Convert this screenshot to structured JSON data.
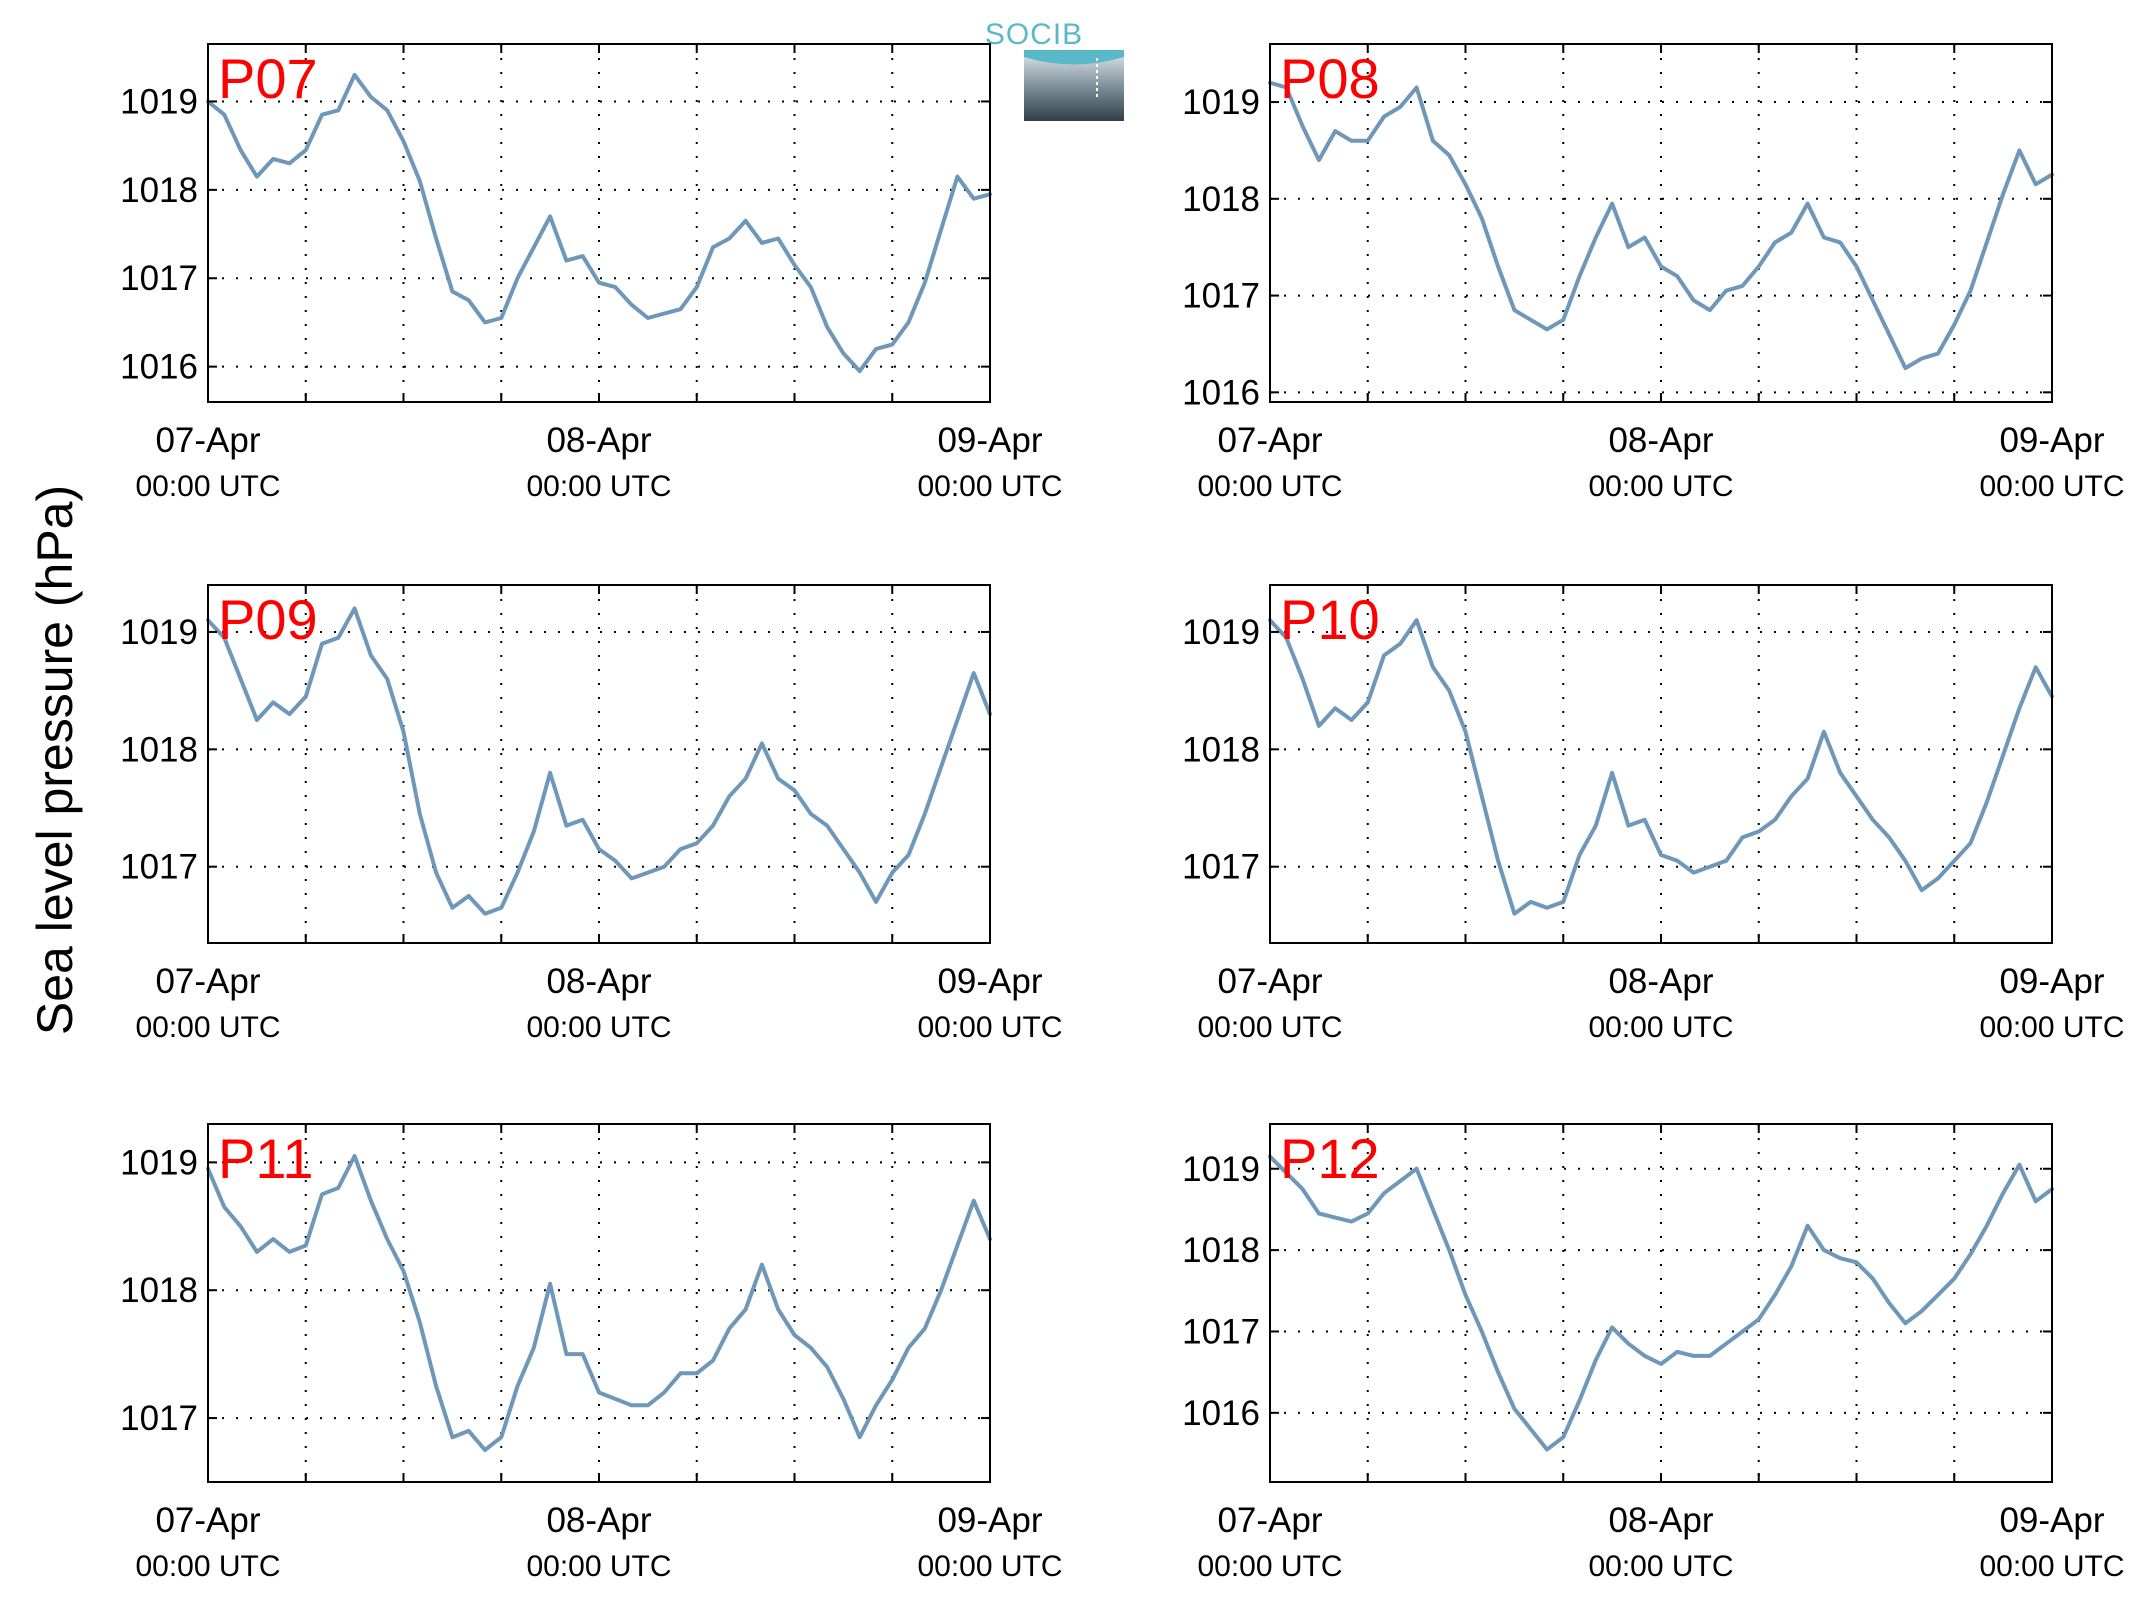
{
  "figure": {
    "ylabel": "Sea level pressure (hPa)",
    "logo_text": "SOCIB",
    "logo_icon": "socib-logo-icon"
  },
  "style": {
    "line_color": "#6f97b9",
    "title_color": "#ff0000",
    "axis_color": "#000000",
    "grid_color": "#000000"
  },
  "x_tick_labels": [
    {
      "date": "07-Apr",
      "time": "00:00 UTC"
    },
    {
      "date": "08-Apr",
      "time": "00:00 UTC"
    },
    {
      "date": "09-Apr",
      "time": "00:00 UTC"
    }
  ],
  "chart_data": [
    {
      "type": "line",
      "title": "P07",
      "xlabel": "",
      "ylabel": "Sea level pressure (hPa)",
      "x_unit": "hours since 07-Apr 00:00 UTC",
      "xlim": [
        0,
        48
      ],
      "ylim": [
        1015.6,
        1019.65
      ],
      "yticks": [
        1016,
        1017,
        1018,
        1019
      ],
      "grid": true,
      "x": [
        0,
        1,
        2,
        3,
        4,
        5,
        6,
        7,
        8,
        9,
        10,
        11,
        12,
        13,
        14,
        15,
        16,
        17,
        18,
        19,
        20,
        21,
        22,
        23,
        24,
        25,
        26,
        27,
        28,
        29,
        30,
        31,
        32,
        33,
        34,
        35,
        36,
        37,
        38,
        39,
        40,
        41,
        42,
        43,
        44,
        45,
        46,
        47,
        48
      ],
      "y": [
        1019.0,
        1018.85,
        1018.45,
        1018.15,
        1018.35,
        1018.3,
        1018.45,
        1018.85,
        1018.9,
        1019.3,
        1019.05,
        1018.9,
        1018.55,
        1018.1,
        1017.45,
        1016.85,
        1016.75,
        1016.5,
        1016.55,
        1017.0,
        1017.35,
        1017.7,
        1017.2,
        1017.25,
        1016.95,
        1016.9,
        1016.7,
        1016.55,
        1016.6,
        1016.65,
        1016.9,
        1017.35,
        1017.45,
        1017.65,
        1017.4,
        1017.45,
        1017.15,
        1016.9,
        1016.45,
        1016.15,
        1015.95,
        1016.2,
        1016.25,
        1016.5,
        1016.95,
        1017.55,
        1018.15,
        1017.9,
        1017.95
      ]
    },
    {
      "type": "line",
      "title": "P08",
      "xlabel": "",
      "ylabel": "Sea level pressure (hPa)",
      "x_unit": "hours since 07-Apr 00:00 UTC",
      "xlim": [
        0,
        48
      ],
      "ylim": [
        1015.9,
        1019.6
      ],
      "yticks": [
        1016,
        1017,
        1018,
        1019
      ],
      "grid": true,
      "x": [
        0,
        1,
        2,
        3,
        4,
        5,
        6,
        7,
        8,
        9,
        10,
        11,
        12,
        13,
        14,
        15,
        16,
        17,
        18,
        19,
        20,
        21,
        22,
        23,
        24,
        25,
        26,
        27,
        28,
        29,
        30,
        31,
        32,
        33,
        34,
        35,
        36,
        37,
        38,
        39,
        40,
        41,
        42,
        43,
        44,
        45,
        46,
        47,
        48
      ],
      "y": [
        1019.2,
        1019.15,
        1018.75,
        1018.4,
        1018.7,
        1018.6,
        1018.6,
        1018.85,
        1018.95,
        1019.15,
        1018.6,
        1018.45,
        1018.15,
        1017.8,
        1017.3,
        1016.85,
        1016.75,
        1016.65,
        1016.75,
        1017.2,
        1017.6,
        1017.95,
        1017.5,
        1017.6,
        1017.3,
        1017.2,
        1016.95,
        1016.85,
        1017.05,
        1017.1,
        1017.3,
        1017.55,
        1017.65,
        1017.95,
        1017.6,
        1017.55,
        1017.3,
        1016.95,
        1016.6,
        1016.25,
        1016.35,
        1016.4,
        1016.7,
        1017.05,
        1017.55,
        1018.05,
        1018.5,
        1018.15,
        1018.25
      ]
    },
    {
      "type": "line",
      "title": "P09",
      "xlabel": "",
      "ylabel": "Sea level pressure (hPa)",
      "x_unit": "hours since 07-Apr 00:00 UTC",
      "xlim": [
        0,
        48
      ],
      "ylim": [
        1016.35,
        1019.4
      ],
      "yticks": [
        1017,
        1018,
        1019
      ],
      "grid": true,
      "x": [
        0,
        1,
        2,
        3,
        4,
        5,
        6,
        7,
        8,
        9,
        10,
        11,
        12,
        13,
        14,
        15,
        16,
        17,
        18,
        19,
        20,
        21,
        22,
        23,
        24,
        25,
        26,
        27,
        28,
        29,
        30,
        31,
        32,
        33,
        34,
        35,
        36,
        37,
        38,
        39,
        40,
        41,
        42,
        43,
        44,
        45,
        46,
        47,
        48
      ],
      "y": [
        1019.1,
        1018.95,
        1018.6,
        1018.25,
        1018.4,
        1018.3,
        1018.45,
        1018.9,
        1018.95,
        1019.2,
        1018.8,
        1018.6,
        1018.15,
        1017.45,
        1016.95,
        1016.65,
        1016.75,
        1016.6,
        1016.65,
        1016.95,
        1017.3,
        1017.8,
        1017.35,
        1017.4,
        1017.15,
        1017.05,
        1016.9,
        1016.95,
        1017.0,
        1017.15,
        1017.2,
        1017.35,
        1017.6,
        1017.75,
        1018.05,
        1017.75,
        1017.65,
        1017.45,
        1017.35,
        1017.15,
        1016.95,
        1016.7,
        1016.95,
        1017.1,
        1017.45,
        1017.85,
        1018.25,
        1018.65,
        1018.3
      ]
    },
    {
      "type": "line",
      "title": "P10",
      "xlabel": "",
      "ylabel": "Sea level pressure (hPa)",
      "x_unit": "hours since 07-Apr 00:00 UTC",
      "xlim": [
        0,
        48
      ],
      "ylim": [
        1016.35,
        1019.4
      ],
      "yticks": [
        1017,
        1018,
        1019
      ],
      "grid": true,
      "x": [
        0,
        1,
        2,
        3,
        4,
        5,
        6,
        7,
        8,
        9,
        10,
        11,
        12,
        13,
        14,
        15,
        16,
        17,
        18,
        19,
        20,
        21,
        22,
        23,
        24,
        25,
        26,
        27,
        28,
        29,
        30,
        31,
        32,
        33,
        34,
        35,
        36,
        37,
        38,
        39,
        40,
        41,
        42,
        43,
        44,
        45,
        46,
        47,
        48
      ],
      "y": [
        1019.1,
        1018.95,
        1018.6,
        1018.2,
        1018.35,
        1018.25,
        1018.4,
        1018.8,
        1018.9,
        1019.1,
        1018.7,
        1018.5,
        1018.15,
        1017.6,
        1017.05,
        1016.6,
        1016.7,
        1016.65,
        1016.7,
        1017.1,
        1017.35,
        1017.8,
        1017.35,
        1017.4,
        1017.1,
        1017.05,
        1016.95,
        1017.0,
        1017.05,
        1017.25,
        1017.3,
        1017.4,
        1017.6,
        1017.75,
        1018.15,
        1017.8,
        1017.6,
        1017.4,
        1017.25,
        1017.05,
        1016.8,
        1016.9,
        1017.05,
        1017.2,
        1017.55,
        1017.95,
        1018.35,
        1018.7,
        1018.45
      ]
    },
    {
      "type": "line",
      "title": "P11",
      "xlabel": "",
      "ylabel": "Sea level pressure (hPa)",
      "x_unit": "hours since 07-Apr 00:00 UTC",
      "xlim": [
        0,
        48
      ],
      "ylim": [
        1016.5,
        1019.3
      ],
      "yticks": [
        1017,
        1018,
        1019
      ],
      "grid": true,
      "x": [
        0,
        1,
        2,
        3,
        4,
        5,
        6,
        7,
        8,
        9,
        10,
        11,
        12,
        13,
        14,
        15,
        16,
        17,
        18,
        19,
        20,
        21,
        22,
        23,
        24,
        25,
        26,
        27,
        28,
        29,
        30,
        31,
        32,
        33,
        34,
        35,
        36,
        37,
        38,
        39,
        40,
        41,
        42,
        43,
        44,
        45,
        46,
        47,
        48
      ],
      "y": [
        1018.95,
        1018.65,
        1018.5,
        1018.3,
        1018.4,
        1018.3,
        1018.35,
        1018.75,
        1018.8,
        1019.05,
        1018.7,
        1018.4,
        1018.15,
        1017.75,
        1017.25,
        1016.85,
        1016.9,
        1016.75,
        1016.85,
        1017.25,
        1017.55,
        1018.05,
        1017.5,
        1017.5,
        1017.2,
        1017.15,
        1017.1,
        1017.1,
        1017.2,
        1017.35,
        1017.35,
        1017.45,
        1017.7,
        1017.85,
        1018.2,
        1017.85,
        1017.65,
        1017.55,
        1017.4,
        1017.15,
        1016.85,
        1017.1,
        1017.3,
        1017.55,
        1017.7,
        1018.0,
        1018.35,
        1018.7,
        1018.4
      ]
    },
    {
      "type": "line",
      "title": "P12",
      "xlabel": "",
      "ylabel": "Sea level pressure (hPa)",
      "x_unit": "hours since 07-Apr 00:00 UTC",
      "xlim": [
        0,
        48
      ],
      "ylim": [
        1015.15,
        1019.55
      ],
      "yticks": [
        1016,
        1017,
        1018,
        1019
      ],
      "grid": true,
      "x": [
        0,
        1,
        2,
        3,
        4,
        5,
        6,
        7,
        8,
        9,
        10,
        11,
        12,
        13,
        14,
        15,
        16,
        17,
        18,
        19,
        20,
        21,
        22,
        23,
        24,
        25,
        26,
        27,
        28,
        29,
        30,
        31,
        32,
        33,
        34,
        35,
        36,
        37,
        38,
        39,
        40,
        41,
        42,
        43,
        44,
        45,
        46,
        47,
        48
      ],
      "y": [
        1019.15,
        1018.95,
        1018.75,
        1018.45,
        1018.4,
        1018.35,
        1018.45,
        1018.7,
        1018.85,
        1019.0,
        1018.5,
        1018.0,
        1017.45,
        1017.0,
        1016.5,
        1016.05,
        1015.8,
        1015.55,
        1015.7,
        1016.15,
        1016.65,
        1017.05,
        1016.85,
        1016.7,
        1016.6,
        1016.75,
        1016.7,
        1016.7,
        1016.85,
        1017.0,
        1017.15,
        1017.45,
        1017.8,
        1018.3,
        1018.0,
        1017.9,
        1017.85,
        1017.65,
        1017.35,
        1017.1,
        1017.25,
        1017.45,
        1017.65,
        1017.95,
        1018.3,
        1018.7,
        1019.05,
        1018.6,
        1018.75
      ]
    }
  ]
}
